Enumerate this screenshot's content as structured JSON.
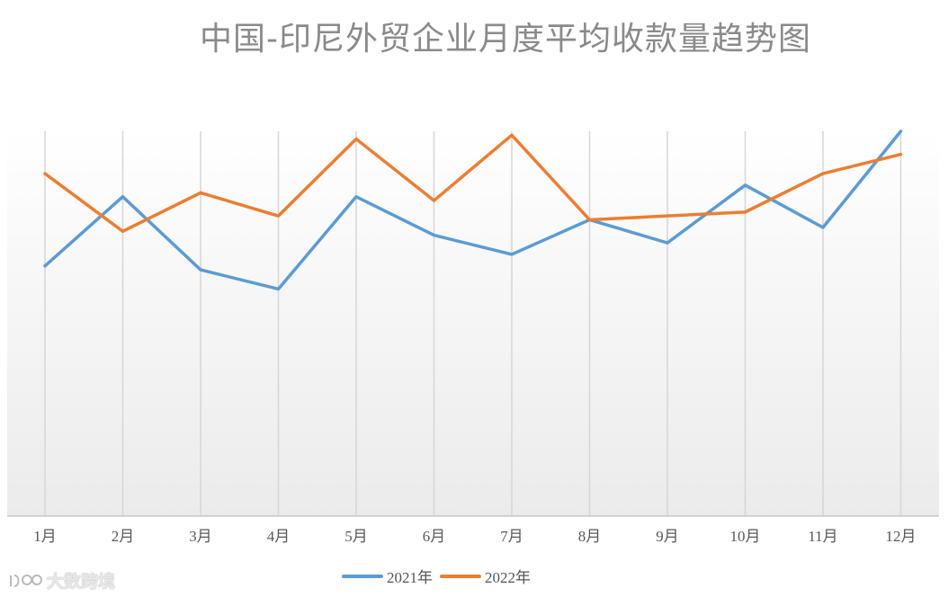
{
  "chart_data": {
    "type": "line",
    "title": "中国-印尼外贸企业月度平均收款量趋势图",
    "categories": [
      "1月",
      "2月",
      "3月",
      "4月",
      "5月",
      "6月",
      "7月",
      "8月",
      "9月",
      "10月",
      "11月",
      "12月"
    ],
    "series": [
      {
        "name": "2021年",
        "color": "#5b9bd5",
        "values": [
          65,
          83,
          64,
          59,
          83,
          73,
          68,
          77,
          71,
          86,
          75,
          100
        ]
      },
      {
        "name": "2022年",
        "color": "#ed7d31",
        "values": [
          89,
          74,
          84,
          78,
          98,
          82,
          99,
          77,
          78,
          79,
          89,
          94
        ]
      }
    ],
    "ylim": [
      0,
      100
    ],
    "grid": "vertical",
    "legend": "bottom"
  },
  "watermark": {
    "text": "大数跨境"
  }
}
